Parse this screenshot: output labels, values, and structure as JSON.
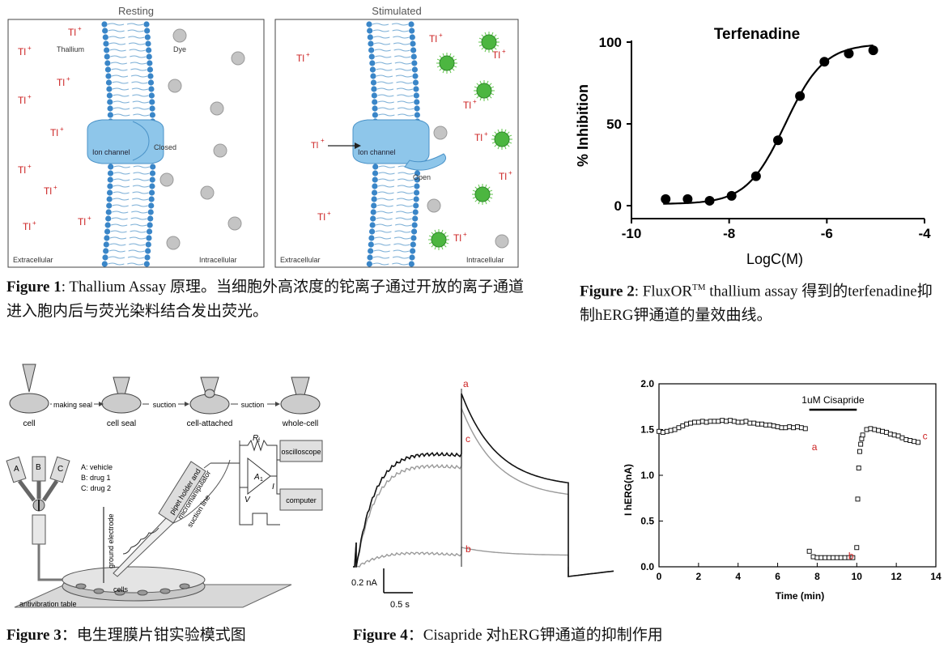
{
  "fig1": {
    "panel_resting": {
      "title": "Resting",
      "labels": {
        "thallium": "Thallium",
        "dye": "Dye",
        "ion_channel": "Ion channel",
        "closed": "Closed",
        "extracellular": "Extracellular",
        "intracellular": "Intracellular"
      }
    },
    "panel_stimulated": {
      "title": "Stimulated",
      "labels": {
        "tl_arrow": "Tl",
        "ion_channel": "Ion channel",
        "open": "Open",
        "extracellular": "Extracellular",
        "intracellular": "Intracellular"
      }
    },
    "tl_symbol": "Tl",
    "tl_charge": "+",
    "caption_label": "Figure 1",
    "caption_text": ": Thallium Assay 原理。当细胞外高浓度的铊离子通过开放的离子通道进入胞内后与荧光染料结合发出荧光。"
  },
  "fig2": {
    "caption_label": "Figure 2",
    "caption_text_1": ": FluxOR",
    "caption_tm": "TM",
    "caption_text_2": " thallium assay 得到的terfenadine抑制hERG钾通道的量效曲线。"
  },
  "fig3": {
    "steps": [
      "cell",
      "cell seal",
      "cell-attached",
      "whole-cell"
    ],
    "arrows": [
      "making seal",
      "suction",
      "suction"
    ],
    "valve_labels": [
      "A",
      "B",
      "C"
    ],
    "legend": [
      "A: vehicle",
      "B: drug 1",
      "C: drug 2"
    ],
    "labels": {
      "rf": "R",
      "rf_sub": "f",
      "amp": "A",
      "amp_sub": "1",
      "i": "I",
      "v": "V",
      "oscilloscope": "oscilloscope",
      "computer": "computer",
      "pipet1": "pipet holder and",
      "pipet2": "micromanipulator",
      "suction_line": "suction line",
      "ground": "ground electrode",
      "cells": "cells",
      "table": "antivibration table"
    },
    "caption_label": "Figure 3",
    "caption_text": "：电生理膜片钳实验模式图"
  },
  "fig4": {
    "trace_labels": [
      "a",
      "b",
      "c"
    ],
    "scale_current": "0.2 nA",
    "scale_time": "0.5 s",
    "caption_label": "Figure 4",
    "caption_text": "：Cisapride 对hERG钾通道的抑制作用"
  },
  "chart_data": [
    {
      "type": "scatter",
      "title": "Terfenadine",
      "xlabel": "LogC(M)",
      "ylabel": "% Inhibition",
      "xlim": [
        -10,
        -4
      ],
      "ylim": [
        0,
        100
      ],
      "xticks": [
        -10,
        -8,
        -6,
        -4
      ],
      "yticks": [
        0,
        50,
        100
      ],
      "grid": false,
      "x": [
        -9.3,
        -8.85,
        -8.4,
        -7.95,
        -7.45,
        -7.0,
        -6.55,
        -6.05,
        -5.55,
        -5.05
      ],
      "y": [
        4,
        4,
        3,
        6,
        18,
        40,
        67,
        88,
        93,
        95
      ],
      "fit_curve": {
        "bottom": 1,
        "top": 99,
        "logIC50": -6.85,
        "hill": 1.1
      }
    },
    {
      "type": "scatter",
      "xlabel": "Time (min)",
      "ylabel": "I hERG(nA)",
      "xlim": [
        0,
        14
      ],
      "ylim": [
        0.0,
        2.0
      ],
      "xticks": [
        0,
        2,
        4,
        6,
        8,
        10,
        12,
        14
      ],
      "yticks": [
        "0.0",
        "0.5",
        "1.0",
        "1.5",
        "2.0"
      ],
      "grid": false,
      "annotation": "1uM Cisapride",
      "bar_range": [
        7.6,
        10.0
      ],
      "point_labels": [
        {
          "label": "a",
          "x": 7.4,
          "y": 1.47
        },
        {
          "label": "b",
          "x": 9.9,
          "y": 0.12
        },
        {
          "label": "c",
          "x": 13.0,
          "y": 1.43
        }
      ],
      "series": [
        {
          "x": [
            0.0,
            0.2,
            0.4,
            0.6,
            0.8,
            1.0,
            1.2,
            1.4,
            1.6,
            1.8,
            2.0,
            2.2,
            2.4,
            2.6,
            2.8,
            3.0,
            3.2,
            3.4,
            3.6,
            3.8,
            4.0,
            4.2,
            4.4,
            4.6,
            4.8,
            5.0,
            5.2,
            5.4,
            5.6,
            5.8,
            6.0,
            6.2,
            6.4,
            6.6,
            6.8,
            7.0,
            7.2,
            7.4
          ],
          "y": [
            1.48,
            1.47,
            1.48,
            1.49,
            1.5,
            1.52,
            1.54,
            1.56,
            1.57,
            1.58,
            1.58,
            1.59,
            1.58,
            1.59,
            1.59,
            1.59,
            1.6,
            1.59,
            1.6,
            1.59,
            1.58,
            1.58,
            1.59,
            1.57,
            1.57,
            1.56,
            1.56,
            1.55,
            1.55,
            1.54,
            1.53,
            1.52,
            1.52,
            1.53,
            1.52,
            1.53,
            1.52,
            1.51
          ]
        },
        {
          "x": [
            7.6,
            7.8,
            8.0,
            8.2,
            8.4,
            8.6,
            8.8,
            9.0,
            9.2,
            9.4,
            9.6,
            9.8,
            10.0,
            10.05,
            10.1,
            10.15,
            10.2,
            10.25
          ],
          "y": [
            0.17,
            0.11,
            0.1,
            0.1,
            0.1,
            0.1,
            0.1,
            0.1,
            0.1,
            0.1,
            0.1,
            0.1,
            0.21,
            0.74,
            1.08,
            1.26,
            1.34,
            1.4
          ]
        },
        {
          "x": [
            10.3,
            10.5,
            10.7,
            10.9,
            11.1,
            11.3,
            11.5,
            11.7,
            11.9,
            12.1,
            12.3,
            12.5,
            12.7,
            12.9,
            13.1
          ],
          "y": [
            1.44,
            1.5,
            1.51,
            1.5,
            1.49,
            1.48,
            1.47,
            1.45,
            1.44,
            1.43,
            1.41,
            1.39,
            1.38,
            1.37,
            1.36
          ]
        }
      ]
    }
  ]
}
